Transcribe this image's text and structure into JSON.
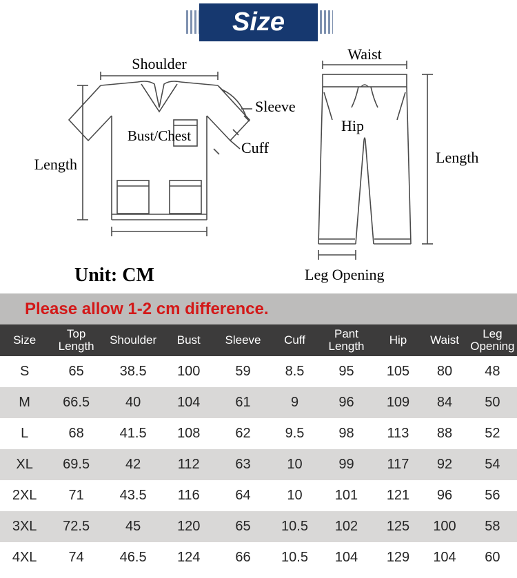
{
  "banner": {
    "title": "Size"
  },
  "diagram": {
    "top": {
      "shoulder": "Shoulder",
      "sleeve": "Sleeve",
      "bust": "Bust/Chest",
      "cuff": "Cuff",
      "length": "Length"
    },
    "pant": {
      "waist": "Waist",
      "hip": "Hip",
      "length": "Length",
      "leg_opening": "Leg Opening"
    },
    "stroke": "#4a4a4a",
    "text_color": "#000000",
    "font_family_serif": "Times New Roman"
  },
  "unit": {
    "label": "Unit: CM"
  },
  "notice": {
    "text": "Please allow 1-2 cm difference."
  },
  "table": {
    "header_bg": "#3c3b3b",
    "header_fg": "#ffffff",
    "row_bg_odd": "#ffffff",
    "row_bg_even": "#d9d8d7",
    "col_widths_pct": [
      9.5,
      10.5,
      11.5,
      10,
      11,
      9,
      11,
      9,
      9,
      9.5
    ],
    "columns": [
      "Size",
      "Top Length",
      "Shoulder",
      "Bust",
      "Sleeve",
      "Cuff",
      "Pant Length",
      "Hip",
      "Waist",
      "Leg Opening"
    ],
    "columns_2line": [
      false,
      true,
      false,
      false,
      false,
      false,
      true,
      false,
      false,
      true
    ],
    "rows": [
      [
        "S",
        "65",
        "38.5",
        "100",
        "59",
        "8.5",
        "95",
        "105",
        "80",
        "48"
      ],
      [
        "M",
        "66.5",
        "40",
        "104",
        "61",
        "9",
        "96",
        "109",
        "84",
        "50"
      ],
      [
        "L",
        "68",
        "41.5",
        "108",
        "62",
        "9.5",
        "98",
        "113",
        "88",
        "52"
      ],
      [
        "XL",
        "69.5",
        "42",
        "112",
        "63",
        "10",
        "99",
        "117",
        "92",
        "54"
      ],
      [
        "2XL",
        "71",
        "43.5",
        "116",
        "64",
        "10",
        "101",
        "121",
        "96",
        "56"
      ],
      [
        "3XL",
        "72.5",
        "45",
        "120",
        "65",
        "10.5",
        "102",
        "125",
        "100",
        "58"
      ],
      [
        "4XL",
        "74",
        "46.5",
        "124",
        "66",
        "10.5",
        "104",
        "129",
        "104",
        "60"
      ]
    ]
  }
}
